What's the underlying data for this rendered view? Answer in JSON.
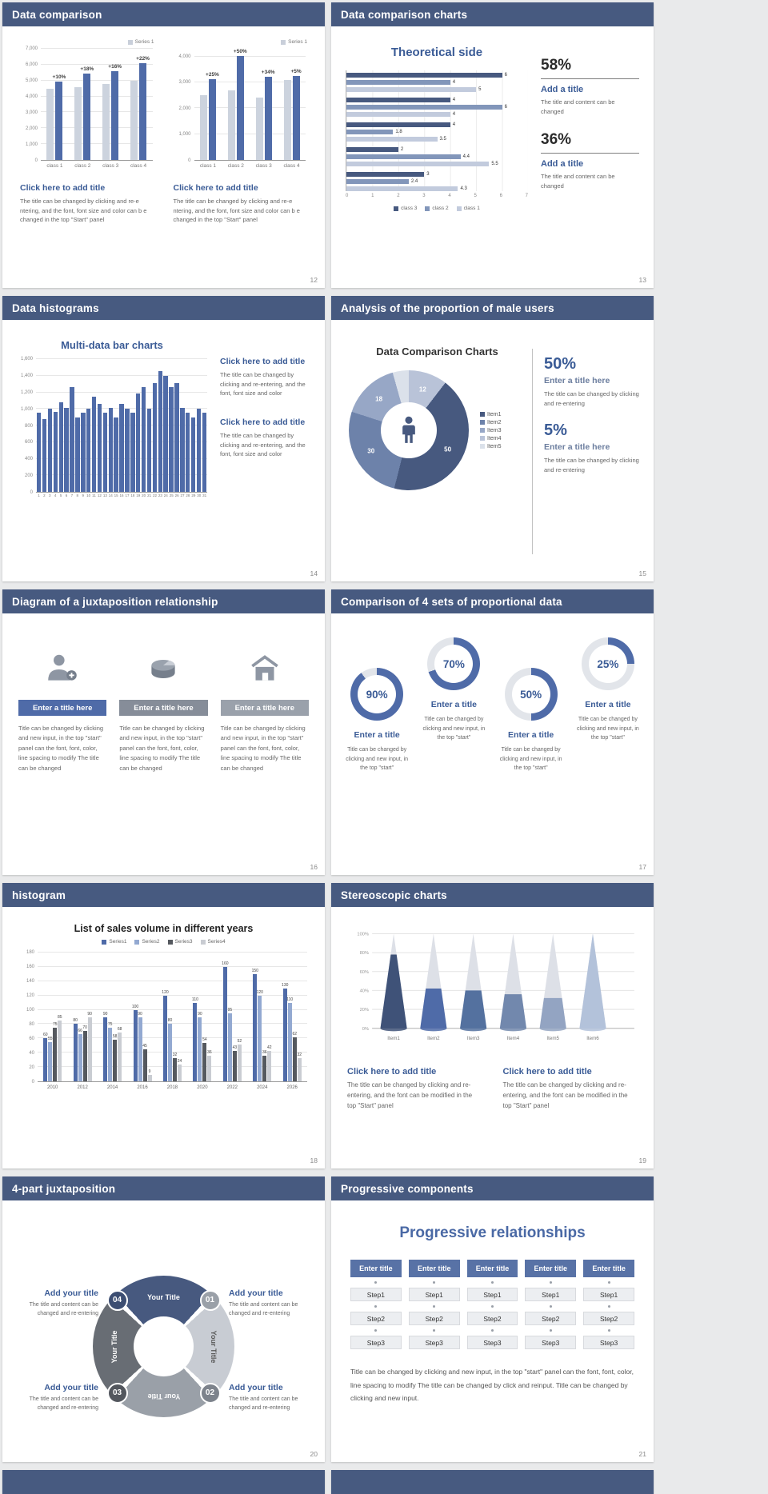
{
  "page": {
    "background": "#e9eaeb"
  },
  "theme": {
    "header_bg": "#475a80",
    "accent_blue": "#4f6ba8",
    "dark_blue": "#47597f",
    "light_bar": "#ccd3de",
    "title_blue": "#3a5b96"
  },
  "slides": {
    "s12": {
      "title": "Data comparison",
      "page_num": "12",
      "charts": [
        {
          "legend": "Series 1",
          "ymax": 7000,
          "y_tick_vals": [
            7000,
            6000,
            5000,
            4000,
            3000,
            2000,
            1000,
            0
          ],
          "y_tick_labels": [
            "7,000",
            "6,000",
            "5,000",
            "4,000",
            "3,000",
            "2,000",
            "1,000",
            "0"
          ],
          "categories": [
            "class 1",
            "class 2",
            "class 3",
            "class 4"
          ],
          "pct_labels": [
            "+10%",
            "+18%",
            "+16%",
            "+22%"
          ],
          "base_values": [
            4500,
            4600,
            4800,
            5000
          ],
          "grown_values": [
            4950,
            5430,
            5570,
            6100
          ]
        },
        {
          "legend": "Series 1",
          "ymax": 4300,
          "y_tick_vals": [
            4000,
            3000,
            2000,
            1000,
            0
          ],
          "y_tick_labels": [
            "4,000",
            "3,000",
            "2,000",
            "1,000",
            "0"
          ],
          "categories": [
            "class 1",
            "class 2",
            "class 3",
            "class 4"
          ],
          "pct_labels": [
            "+25%",
            "+50%",
            "+34%",
            "+5%"
          ],
          "base_values": [
            2500,
            2700,
            2400,
            3100
          ],
          "grown_values": [
            3125,
            4050,
            3215,
            3255
          ]
        }
      ],
      "blocks": [
        {
          "title": "Click here to add title",
          "body": "The title can be changed by clicking and re-e ntering, and the font, font size and color can b e changed in the top \"Start\" panel"
        },
        {
          "title": "Click here to add title",
          "body": "The title can be changed by clicking and re-e ntering, and the font, font size and color can b e changed in the top \"Start\" panel"
        }
      ]
    },
    "s13": {
      "title": "Data comparison charts",
      "page_num": "13",
      "chart_title": "Theoretical side",
      "hbar": {
        "xmax": 7,
        "groups": [
          [
            6,
            4,
            5
          ],
          [
            4,
            6,
            4
          ],
          [
            4,
            1.8,
            3.5
          ],
          [
            2,
            4.4,
            5.5
          ],
          [
            3,
            2.4,
            4.3
          ]
        ],
        "colors": [
          "#47597f",
          "#8296ba",
          "#c2cbdd"
        ],
        "x_ticks": [
          "0",
          "1",
          "2",
          "3",
          "4",
          "5",
          "6",
          "7"
        ],
        "legend": [
          "class 3",
          "class 2",
          "class 1"
        ]
      },
      "stats": [
        {
          "value": "58%",
          "title": "Add a title",
          "body": "The title and content can be changed"
        },
        {
          "value": "36%",
          "title": "Add a title",
          "body": "The title and content can be changed"
        }
      ]
    },
    "s14": {
      "title": "Data histograms",
      "page_num": "14",
      "chart_title": "Multi-data bar charts",
      "hist": {
        "ymax": 1600,
        "y_tick_vals": [
          1600,
          1400,
          1200,
          1000,
          800,
          600,
          400,
          200,
          0
        ],
        "y_tick_labels": [
          "1,600",
          "1,400",
          "1,200",
          "1,000",
          "800",
          "600",
          "400",
          "200",
          "0"
        ],
        "x_labels": [
          "1",
          "2",
          "3",
          "4",
          "5",
          "6",
          "7",
          "8",
          "9",
          "10",
          "11",
          "12",
          "13",
          "14",
          "15",
          "16",
          "17",
          "18",
          "19",
          "20",
          "21",
          "22",
          "23",
          "24",
          "25",
          "26",
          "27",
          "28",
          "29",
          "30",
          "31"
        ],
        "values": [
          950,
          880,
          1000,
          960,
          1080,
          1010,
          1260,
          900,
          950,
          1000,
          1150,
          1060,
          950,
          1010,
          900,
          1060,
          1000,
          950,
          1190,
          1260,
          1000,
          1310,
          1460,
          1400,
          1260,
          1310,
          1010,
          950,
          900,
          1000,
          950
        ]
      },
      "blocks": [
        {
          "title": "Click here to add title",
          "body": "The title can be changed by clicking and re-entering, and the font, font size and color"
        },
        {
          "title": "Click here to add title",
          "body": "The title can be changed by clicking and re-entering, and the font, font size and color"
        }
      ]
    },
    "s15": {
      "title": "Analysis of the proportion of male users",
      "page_num": "15",
      "chart_title": "Data Comparison Charts",
      "donut": {
        "values": [
          12,
          50,
          30,
          18,
          5
        ],
        "labels": [
          "12",
          "50",
          "30",
          "18",
          ""
        ],
        "colors": [
          "#b9c3d8",
          "#47597f",
          "#6d82aa",
          "#97a7c6",
          "#dbe1ea"
        ],
        "legend": [
          "Item1",
          "Item2",
          "Item3",
          "Item4",
          "Item5"
        ],
        "legend_colors": [
          "#47597f",
          "#6d82aa",
          "#97a7c6",
          "#b9c3d8",
          "#dbe1ea"
        ]
      },
      "stats": [
        {
          "value": "50%",
          "title": "Enter a title here",
          "body": "The title can be changed by clicking and re-entering"
        },
        {
          "value": "5%",
          "title": "Enter a title here",
          "body": "The title can be changed by clicking and re-entering"
        }
      ]
    },
    "s16": {
      "title": "Diagram of a juxtaposition relationship",
      "page_num": "16",
      "columns": [
        {
          "icon": "person-add-icon",
          "bar_color": "#4f6ba8",
          "bar_label": "Enter a title here",
          "body": "Title can be changed by clicking and new input, in the top \"start\" panel can the font, font, color, line spacing to modify The title can be changed"
        },
        {
          "icon": "pie-3d-icon",
          "bar_color": "#868d99",
          "bar_label": "Enter a title here",
          "body": "Title can be changed by clicking and new input, in the top \"start\" panel can the font, font, color, line spacing to modify The title can be changed"
        },
        {
          "icon": "house-icon",
          "bar_color": "#9aa1ab",
          "bar_label": "Enter a title here",
          "body": "Title can be changed by clicking and new input, in the top \"start\" panel can the font, font, color, line spacing to modify The title can be changed"
        }
      ]
    },
    "s17": {
      "title": "Comparison of 4 sets of proportional data",
      "page_num": "17",
      "gauges": [
        {
          "pct": 90,
          "label": "90%",
          "title": "Enter a title",
          "body": "Title can be changed by clicking and new input, in the top \"start\""
        },
        {
          "pct": 70,
          "label": "70%",
          "title": "Enter a title",
          "body": "Title can be changed by clicking and new input, in the top \"start\""
        },
        {
          "pct": 50,
          "label": "50%",
          "title": "Enter a title",
          "body": "Title can be changed by clicking and new input, in the top \"start\""
        },
        {
          "pct": 25,
          "label": "25%",
          "title": "Enter a title",
          "body": "Title can be changed by clicking and new input, in the top \"start\""
        }
      ]
    },
    "s18": {
      "title": "histogram",
      "page_num": "18",
      "chart_title": "List of sales volume in different years",
      "grouped": {
        "ymax": 180,
        "y_tick_vals": [
          180,
          160,
          140,
          120,
          100,
          80,
          60,
          40,
          20,
          0
        ],
        "y_tick_labels": [
          "180",
          "160",
          "140",
          "120",
          "100",
          "80",
          "60",
          "40",
          "20",
          "0"
        ],
        "categories": [
          "2010",
          "2012",
          "2014",
          "2016",
          "2018",
          "2020",
          "2022",
          "2024",
          "2026"
        ],
        "legend": [
          "Series1",
          "Series2",
          "Series3",
          "Series4"
        ],
        "colors": [
          "#4f6ba8",
          "#93a9d1",
          "#55595f",
          "#c9ccd2"
        ],
        "series": [
          [
            60,
            80,
            90,
            100,
            120,
            110,
            160,
            150,
            130
          ],
          [
            55,
            66,
            75,
            90,
            80,
            90,
            95,
            120,
            110
          ],
          [
            75,
            70,
            58,
            45,
            32,
            54,
            43,
            36,
            62
          ],
          [
            85,
            90,
            68,
            9,
            24,
            36,
            52,
            42,
            32
          ]
        ]
      }
    },
    "s19": {
      "title": "Stereoscopic charts",
      "page_num": "19",
      "cones": {
        "y_ticks": [
          "100%",
          "80%",
          "60%",
          "40%",
          "20%",
          "0%"
        ],
        "items": [
          "Item1",
          "Item2",
          "Item3",
          "Item4",
          "Item5",
          "Item6"
        ],
        "fill_pcts": [
          78,
          42,
          40,
          36,
          32,
          100
        ],
        "fill_colors": [
          "#3f5278",
          "#4f6ba8",
          "#54719f",
          "#7288ad",
          "#93a4c2",
          "#b3c2da"
        ],
        "shell_color": "#dde0e7"
      },
      "blocks": [
        {
          "title": "Click here to add title",
          "body": "The title can be changed by clicking and re-entering, and the font can be modified in the top \"Start\" panel"
        },
        {
          "title": "Click here to add title",
          "body": "The title can be changed by clicking and re-entering, and the font can be modified in the top \"Start\" panel"
        }
      ]
    },
    "s20": {
      "title": "4-part juxtaposition",
      "page_num": "20",
      "wheel": {
        "segments": [
          {
            "label": "Your Title",
            "color": "#47597f",
            "num": "04",
            "num_color": "#3d4e72",
            "dark_text": false
          },
          {
            "label": "Your Title",
            "color": "#c8ccd3",
            "num": "01",
            "num_color": "#9aa0a8",
            "dark_text": true
          },
          {
            "label": "Your Title",
            "color": "#9aa0a8",
            "num": "02",
            "num_color": "#7d838c",
            "dark_text": false
          },
          {
            "label": "Your Title",
            "color": "#686d74",
            "num": "03",
            "num_color": "#53575e",
            "dark_text": false
          }
        ]
      },
      "blocks": [
        {
          "title": "Add your title",
          "body": "The title and content can be changed and re-entering"
        },
        {
          "title": "Add your title",
          "body": "The title and content can be changed and re-entering"
        },
        {
          "title": "Add your title",
          "body": "The title and content can be changed and re-entering"
        },
        {
          "title": "Add your title",
          "body": "The title and content can be changed and re-entering"
        }
      ]
    },
    "s21": {
      "title": "Progressive components",
      "page_num": "21",
      "heading": "Progressive relationships",
      "table": {
        "header": "Enter title",
        "cols": 5,
        "steps": [
          "Step1",
          "Step2",
          "Step3"
        ]
      },
      "paragraph": "Title can be changed by clicking and new input, in the top \"start\" panel can the font, font, color, line spacing to modify The title can be changed by click and reinput. Title can be changed by clicking and new input."
    }
  }
}
